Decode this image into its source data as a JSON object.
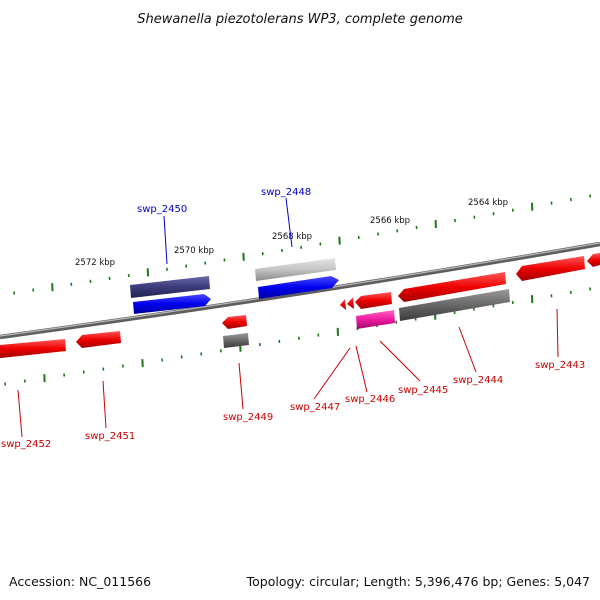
{
  "title": "Shewanella piezotolerans WP3, complete genome",
  "footer": {
    "accession": "Accession: NC_011566",
    "summary": "Topology: circular; Length: 5,396,476 bp; Genes: 5,047"
  },
  "ruler": {
    "labels": [
      "2572 kbp",
      "2570 kbp",
      "2568 kbp",
      "2566 kbp",
      "2564 kbp"
    ]
  },
  "colors": {
    "forward_gene": "#0000ee",
    "reverse_gene": "#ee0000",
    "backbone": "#808080",
    "tick": "#1a7a1a",
    "label_forward": "#0000cc",
    "label_reverse": "#cc0000"
  },
  "genes": {
    "forward": [
      "swp_2450",
      "swp_2448"
    ],
    "reverse": [
      "swp_2452",
      "swp_2451",
      "swp_2449",
      "swp_2447",
      "swp_2446",
      "swp_2445",
      "swp_2444",
      "swp_2443"
    ]
  }
}
